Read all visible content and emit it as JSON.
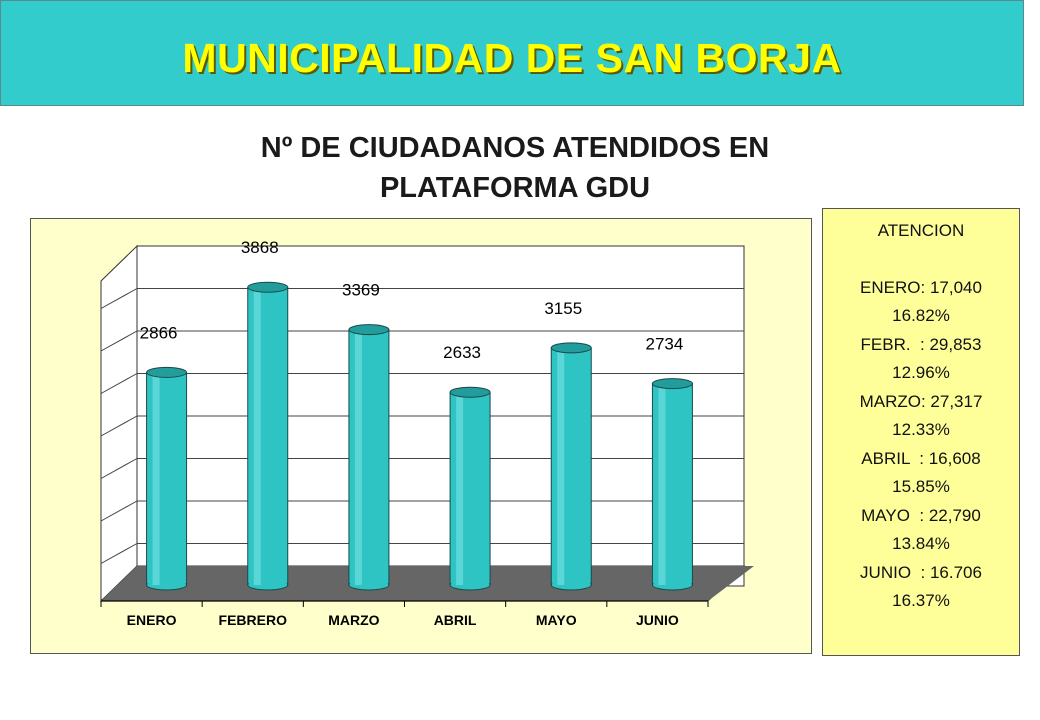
{
  "header": {
    "title": "MUNICIPALIDAD DE SAN BORJA"
  },
  "subtitle": {
    "line1": "Nº DE CIUDADANOS ATENDIDOS EN",
    "line2": "PLATAFORMA GDU"
  },
  "legend": {
    "heading": "ATENCION",
    "lines": [
      "ENERO: 17,040",
      "16.82%",
      "FEBR.  : 29,853",
      "12.96%",
      "MARZO: 27,317",
      "12.33%",
      "ABRIL  : 16,608",
      "15.85%",
      "MAYO  : 22,790",
      "13.84%",
      "JUNIO  : 16.706",
      "16.37%"
    ]
  },
  "colors": {
    "banner": "#33cccc",
    "title": "#ffff00",
    "bar": "#2ec4c4",
    "floor": "#666666",
    "plot_bg": "#ffffcc",
    "legend_bg": "#ffff99"
  },
  "chart_data": {
    "type": "bar",
    "style": "3d-cylinder",
    "categories": [
      "ENERO",
      "FEBRERO",
      "MARZO",
      "ABRIL",
      "MAYO",
      "JUNIO"
    ],
    "values": [
      2866,
      3868,
      3369,
      2633,
      3155,
      2734
    ],
    "data_labels": [
      "2866",
      "3868",
      "3369",
      "2633",
      "3155",
      "2734"
    ],
    "ylim": [
      0,
      4000
    ],
    "grid": true,
    "legend": "none"
  }
}
